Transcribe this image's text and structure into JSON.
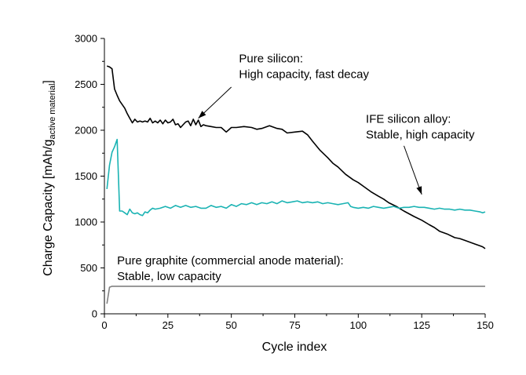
{
  "chart_data": {
    "type": "line",
    "title": "",
    "xlabel": "Cycle index",
    "ylabel": "Charge Capacity [mAh/g",
    "ylabel_sub": "active material",
    "ylabel_close": "]",
    "xlim": [
      0,
      150
    ],
    "ylim": [
      0,
      3000
    ],
    "x_ticks": [
      0,
      25,
      50,
      75,
      100,
      125,
      150
    ],
    "y_ticks": [
      0,
      500,
      1000,
      1500,
      2000,
      2500,
      3000
    ],
    "grid": false,
    "legend": "none",
    "colors": {
      "silicon": "#000000",
      "alloy": "#1ab3b3",
      "graphite": "#808080",
      "arrow": "#000000"
    },
    "series": [
      {
        "key": "silicon",
        "x": [
          1,
          2,
          3,
          4,
          5,
          6,
          7,
          8,
          9,
          10,
          11,
          12,
          13,
          14,
          15,
          16,
          17,
          18,
          19,
          20,
          21,
          22,
          23,
          24,
          25,
          26,
          27,
          28,
          29,
          30,
          31,
          32,
          33,
          34,
          35,
          36,
          37,
          38,
          39,
          40,
          42,
          44,
          46,
          48,
          50,
          52,
          55,
          58,
          60,
          62,
          65,
          68,
          70,
          72,
          75,
          78,
          80,
          82,
          85,
          88,
          90,
          92,
          95,
          98,
          100,
          102,
          105,
          108,
          110,
          112,
          115,
          118,
          120,
          122,
          125,
          128,
          130,
          132,
          135,
          138,
          140,
          142,
          144,
          146,
          148,
          149,
          150
        ],
        "y": [
          2700,
          2690,
          2670,
          2450,
          2380,
          2320,
          2280,
          2240,
          2180,
          2130,
          2080,
          2120,
          2090,
          2100,
          2090,
          2100,
          2090,
          2130,
          2080,
          2100,
          2080,
          2110,
          2070,
          2110,
          2080,
          2090,
          2120,
          2060,
          2070,
          2030,
          2060,
          2090,
          2100,
          2050,
          2120,
          2060,
          2110,
          2040,
          2060,
          2050,
          2040,
          2030,
          2030,
          1980,
          2030,
          2030,
          2040,
          2030,
          2010,
          2020,
          2050,
          2020,
          2010,
          1970,
          1980,
          1990,
          1950,
          1880,
          1780,
          1700,
          1640,
          1600,
          1520,
          1460,
          1430,
          1390,
          1330,
          1280,
          1250,
          1210,
          1170,
          1120,
          1090,
          1060,
          1020,
          970,
          940,
          900,
          870,
          830,
          820,
          800,
          780,
          760,
          740,
          730,
          710
        ]
      },
      {
        "key": "alloy",
        "x": [
          1,
          2,
          3,
          4,
          5,
          6,
          7,
          8,
          9,
          10,
          11,
          12,
          13,
          14,
          15,
          16,
          17,
          18,
          19,
          20,
          22,
          24,
          26,
          28,
          30,
          32,
          34,
          36,
          38,
          40,
          42,
          44,
          46,
          48,
          50,
          52,
          54,
          56,
          58,
          60,
          62,
          64,
          66,
          68,
          70,
          72,
          74,
          76,
          78,
          80,
          82,
          84,
          86,
          88,
          90,
          92,
          94,
          96,
          97,
          98,
          100,
          102,
          104,
          106,
          108,
          110,
          112,
          114,
          116,
          118,
          120,
          122,
          124,
          126,
          128,
          130,
          132,
          134,
          136,
          138,
          140,
          142,
          144,
          146,
          148,
          149,
          150
        ],
        "y": [
          1360,
          1620,
          1760,
          1820,
          1900,
          1120,
          1120,
          1100,
          1080,
          1140,
          1100,
          1090,
          1100,
          1080,
          1070,
          1110,
          1100,
          1130,
          1150,
          1140,
          1150,
          1170,
          1150,
          1180,
          1160,
          1180,
          1160,
          1170,
          1150,
          1150,
          1180,
          1160,
          1170,
          1150,
          1190,
          1170,
          1200,
          1190,
          1210,
          1190,
          1210,
          1200,
          1220,
          1200,
          1230,
          1210,
          1220,
          1230,
          1210,
          1220,
          1210,
          1220,
          1200,
          1210,
          1200,
          1190,
          1200,
          1210,
          1170,
          1160,
          1150,
          1160,
          1150,
          1170,
          1160,
          1150,
          1160,
          1170,
          1150,
          1160,
          1160,
          1170,
          1160,
          1160,
          1150,
          1140,
          1150,
          1140,
          1140,
          1130,
          1140,
          1130,
          1130,
          1120,
          1110,
          1100,
          1110
        ]
      },
      {
        "key": "graphite",
        "x": [
          1,
          2,
          3,
          150
        ],
        "y": [
          110,
          290,
          300,
          300
        ]
      }
    ],
    "annotations": [
      {
        "key": "silicon",
        "lines": [
          "Pure silicon:",
          "High capacity, fast decay"
        ],
        "anchor": [
          53,
          2740
        ],
        "arrow_from": [
          50,
          2470
        ],
        "arrow_to": [
          37,
          2130
        ]
      },
      {
        "key": "alloy",
        "lines": [
          "IFE silicon alloy:",
          "Stable, high capacity"
        ],
        "anchor": [
          103,
          2080
        ],
        "arrow_from": [
          118,
          1830
        ],
        "arrow_to": [
          125,
          1300
        ]
      },
      {
        "key": "graphite",
        "lines": [
          "Pure graphite (commercial anode material):",
          "Stable, low capacity"
        ],
        "anchor": [
          5,
          540
        ],
        "arrow_from": null,
        "arrow_to": null
      }
    ]
  }
}
